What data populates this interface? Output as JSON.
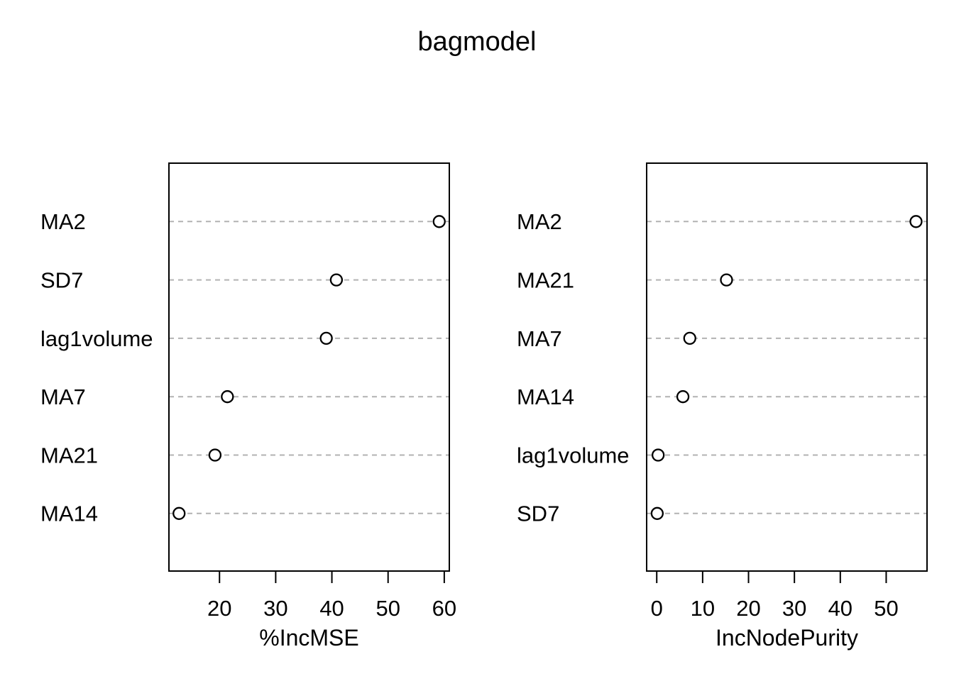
{
  "page": {
    "title": "bagmodel",
    "background": "#ffffff"
  },
  "colors": {
    "foreground": "#000000",
    "gridline": "#b2b2b2",
    "point_stroke": "#000000",
    "point_fill": "#ffffff",
    "text": "#000000"
  },
  "chart_data": [
    {
      "type": "scatter",
      "subtype": "dotchart",
      "panel": "left",
      "title": "bagmodel",
      "xlabel": "%IncMSE",
      "ylabel": "",
      "grid": "dashed-horizontal",
      "legend": "none",
      "xlim": [
        11.0,
        60.9
      ],
      "xticks": [
        20,
        30,
        40,
        50,
        60
      ],
      "categories": [
        "MA2",
        "SD7",
        "lag1volume",
        "MA7",
        "MA21",
        "MA14"
      ],
      "values": [
        59.1,
        40.8,
        39.0,
        21.4,
        19.2,
        12.8
      ]
    },
    {
      "type": "scatter",
      "subtype": "dotchart",
      "panel": "right",
      "title": "bagmodel",
      "xlabel": "IncNodePurity",
      "ylabel": "",
      "grid": "dashed-horizontal",
      "legend": "none",
      "xlim": [
        -2.2,
        58.9
      ],
      "xticks": [
        0,
        10,
        20,
        30,
        40,
        50
      ],
      "categories": [
        "MA2",
        "MA21",
        "MA7",
        "MA14",
        "lag1volume",
        "SD7"
      ],
      "values": [
        56.5,
        15.2,
        7.2,
        5.7,
        0.3,
        0.1
      ]
    }
  ]
}
